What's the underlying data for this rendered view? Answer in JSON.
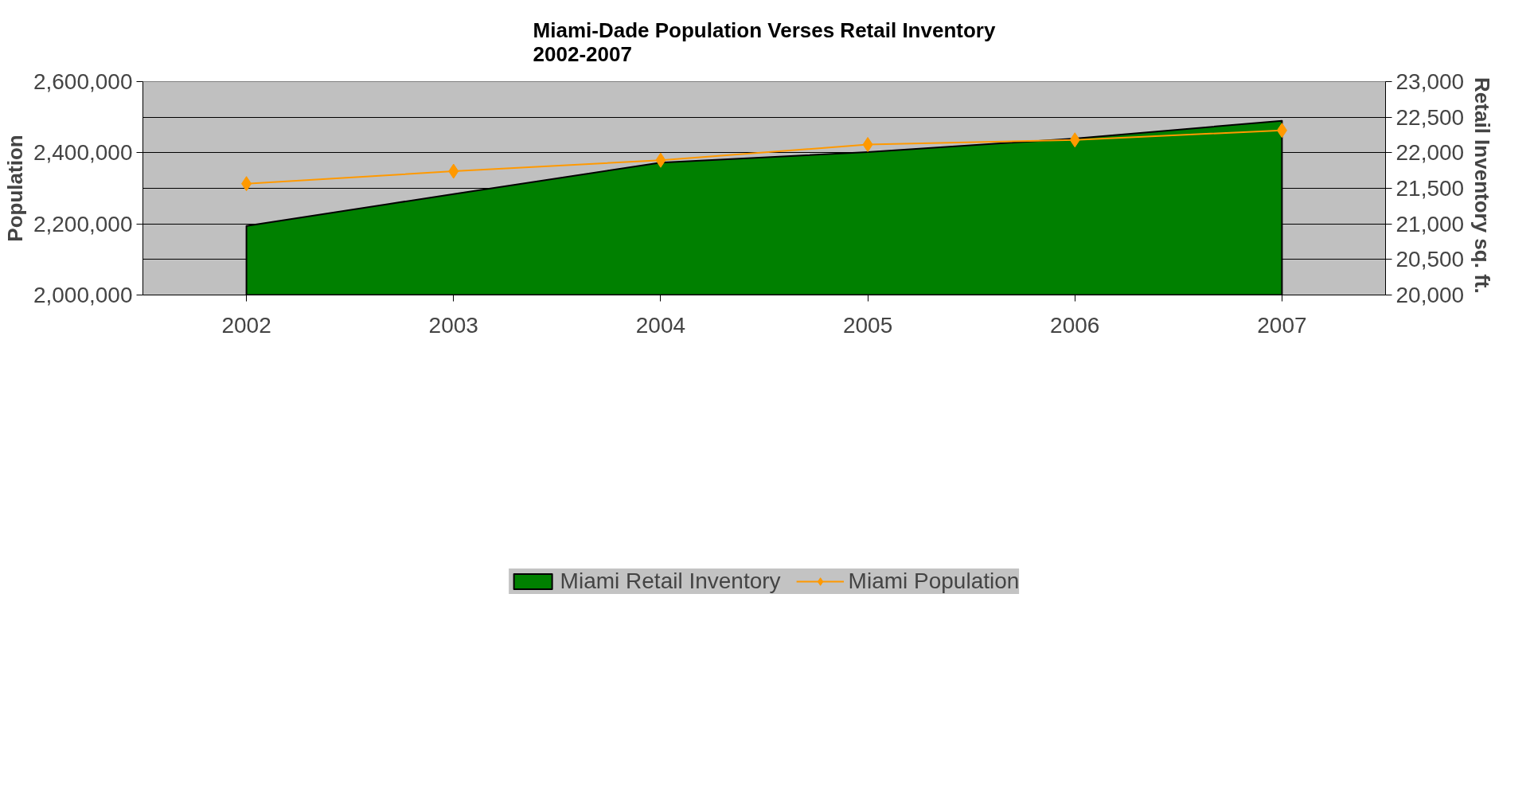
{
  "chart_data": {
    "type": "area",
    "title": "Miami-Dade Population Verses Retail Inventory\n2002-2007",
    "ylabel": "Population",
    "y2label": "Retail  Inventory sq. ft.",
    "categories": [
      "2002",
      "2003",
      "2004",
      "2005",
      "2006",
      "2007"
    ],
    "series": [
      {
        "name": "Miami Retail Inventory",
        "axis": "y2",
        "color": "#008000",
        "values": [
          20970,
          21420,
          21860,
          22010,
          22200,
          22450
        ]
      },
      {
        "name": "Miami Population",
        "type": "line",
        "color": "#ff9900",
        "marker": "diamond",
        "values": [
          2313000,
          2348000,
          2379000,
          2423000,
          2436000,
          2463000
        ]
      }
    ],
    "ylim": [
      2000000,
      2600000
    ],
    "yticks": [
      {
        "value": 2000000,
        "label": "2,000,000"
      },
      {
        "value": 2200000,
        "label": "2,200,000"
      },
      {
        "value": 2400000,
        "label": "2,400,000"
      },
      {
        "value": 2600000,
        "label": "2,600,000"
      }
    ],
    "y2lim": [
      20000,
      23000
    ],
    "y2ticks": [
      {
        "value": 20000,
        "label": "20,000"
      },
      {
        "value": 20500,
        "label": "20,500"
      },
      {
        "value": 21000,
        "label": "21,000"
      },
      {
        "value": 21500,
        "label": "21,500"
      },
      {
        "value": 22000,
        "label": "22,000"
      },
      {
        "value": 22500,
        "label": "22,500"
      },
      {
        "value": 23000,
        "label": "23,000"
      }
    ],
    "grid": "y2",
    "legend": "bottom"
  }
}
